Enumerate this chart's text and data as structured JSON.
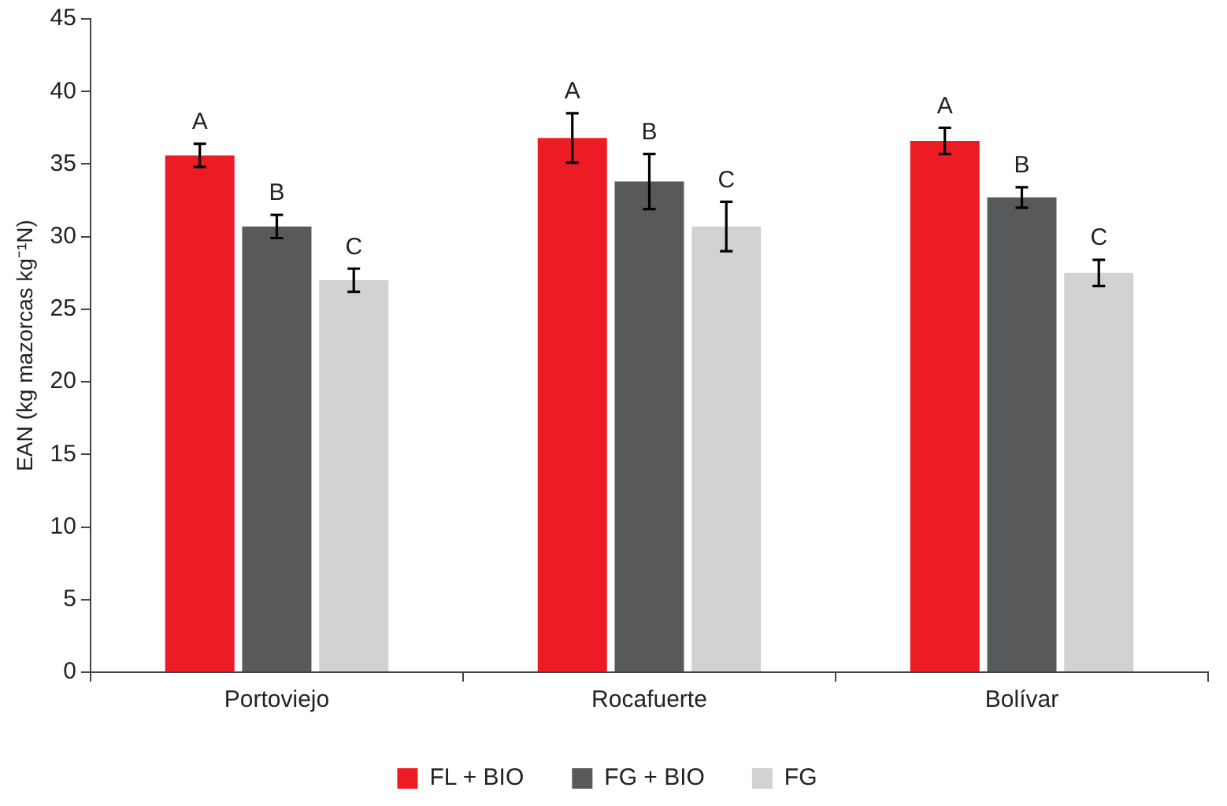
{
  "chart_data": {
    "type": "bar",
    "ylabel": "EAN (kg mazorcas kg⁻¹N)",
    "categories": [
      "Portoviejo",
      "Rocafuerte",
      "Bolívar"
    ],
    "series": [
      {
        "name": "FL + BIO",
        "color": "#ed1c24",
        "values": [
          35.6,
          36.8,
          36.6
        ],
        "errors": [
          0.8,
          1.7,
          0.9
        ]
      },
      {
        "name": "FG + BIO",
        "color": "#58595b",
        "values": [
          30.7,
          33.8,
          32.7
        ],
        "errors": [
          0.8,
          1.9,
          0.7
        ]
      },
      {
        "name": "FG",
        "color": "#d1d2d4",
        "values": [
          27.0,
          30.7,
          27.5
        ],
        "errors": [
          0.8,
          1.7,
          0.9
        ]
      }
    ],
    "ylim": [
      0,
      45
    ],
    "yticks": [
      0,
      5,
      10,
      15,
      20,
      25,
      30,
      35,
      40,
      45
    ],
    "grid": false,
    "legend": "bottom",
    "annotations": [
      "A",
      "B",
      "C",
      "A",
      "B",
      "C",
      "A",
      "B",
      "C"
    ]
  }
}
